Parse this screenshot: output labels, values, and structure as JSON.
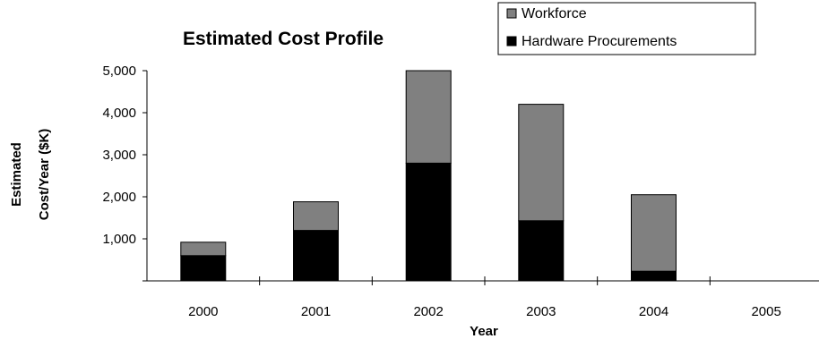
{
  "chart_data": {
    "type": "bar",
    "stacked": true,
    "title": "Estimated Cost Profile",
    "xlabel": "Year",
    "ylabel_lines": [
      "Estimated",
      "Cost/Year    ($K)"
    ],
    "categories": [
      "2000",
      "2001",
      "2002",
      "2003",
      "2004",
      "2005"
    ],
    "ylim": [
      0,
      5000
    ],
    "yticks": [
      1000,
      2000,
      3000,
      4000,
      5000
    ],
    "ytick_labels": [
      "1,000",
      "2,000",
      "3,000",
      "4,000",
      "5,000"
    ],
    "series": [
      {
        "name": "Hardware Procurements",
        "color": "#000000",
        "values": [
          600,
          1200,
          2800,
          1430,
          230,
          0
        ]
      },
      {
        "name": "Workforce",
        "color": "#808080",
        "values": [
          320,
          680,
          2200,
          2770,
          1820,
          0
        ]
      }
    ],
    "grid": false,
    "legend": {
      "placement": "top-right",
      "order": [
        "Workforce",
        "Hardware Procurements"
      ]
    }
  }
}
